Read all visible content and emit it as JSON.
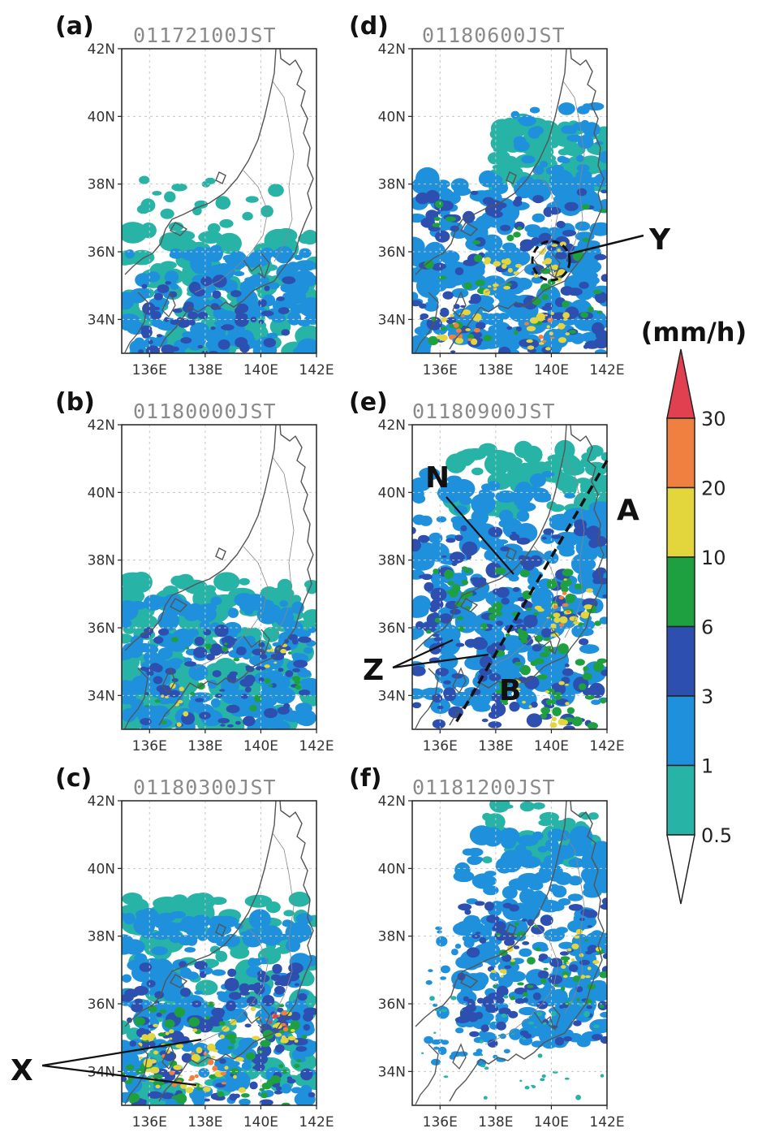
{
  "panels": [
    {
      "label": "(a)",
      "time": "01172100JST"
    },
    {
      "label": "(d)",
      "time": "01180600JST"
    },
    {
      "label": "(b)",
      "time": "01180000JST"
    },
    {
      "label": "(e)",
      "time": "01180900JST"
    },
    {
      "label": "(c)",
      "time": "01180300JST"
    },
    {
      "label": "(f)",
      "time": "01181200JST"
    }
  ],
  "axes": {
    "lat_labels": [
      "42N",
      "40N",
      "38N",
      "36N",
      "34N"
    ],
    "lon_labels": [
      "136E",
      "138E",
      "140E",
      "142E"
    ],
    "lat_range": [
      33,
      42
    ],
    "lon_range": [
      135,
      142
    ]
  },
  "annotations": {
    "Y": "Y",
    "N": "N",
    "A": "A",
    "B": "B",
    "Z": "Z",
    "X": "X"
  },
  "colorbar": {
    "unit": "(mm/h)",
    "levels": [
      "0.5",
      "1",
      "3",
      "6",
      "10",
      "20",
      "30"
    ],
    "colors": [
      "#27b3a6",
      "#1e90dc",
      "#2c4fb0",
      "#1fa040",
      "#e3d63c",
      "#f08040",
      "#e04050"
    ],
    "under_color": "#ffffff"
  },
  "colors": {
    "light": "#27b3a6",
    "blue": "#1e90dc",
    "dark": "#2c4fb0",
    "green": "#1fa040",
    "yellow": "#e3d63c",
    "orange": "#f08040",
    "red": "#e04050",
    "coast": "#555555",
    "grid": "#c8c8c8"
  }
}
